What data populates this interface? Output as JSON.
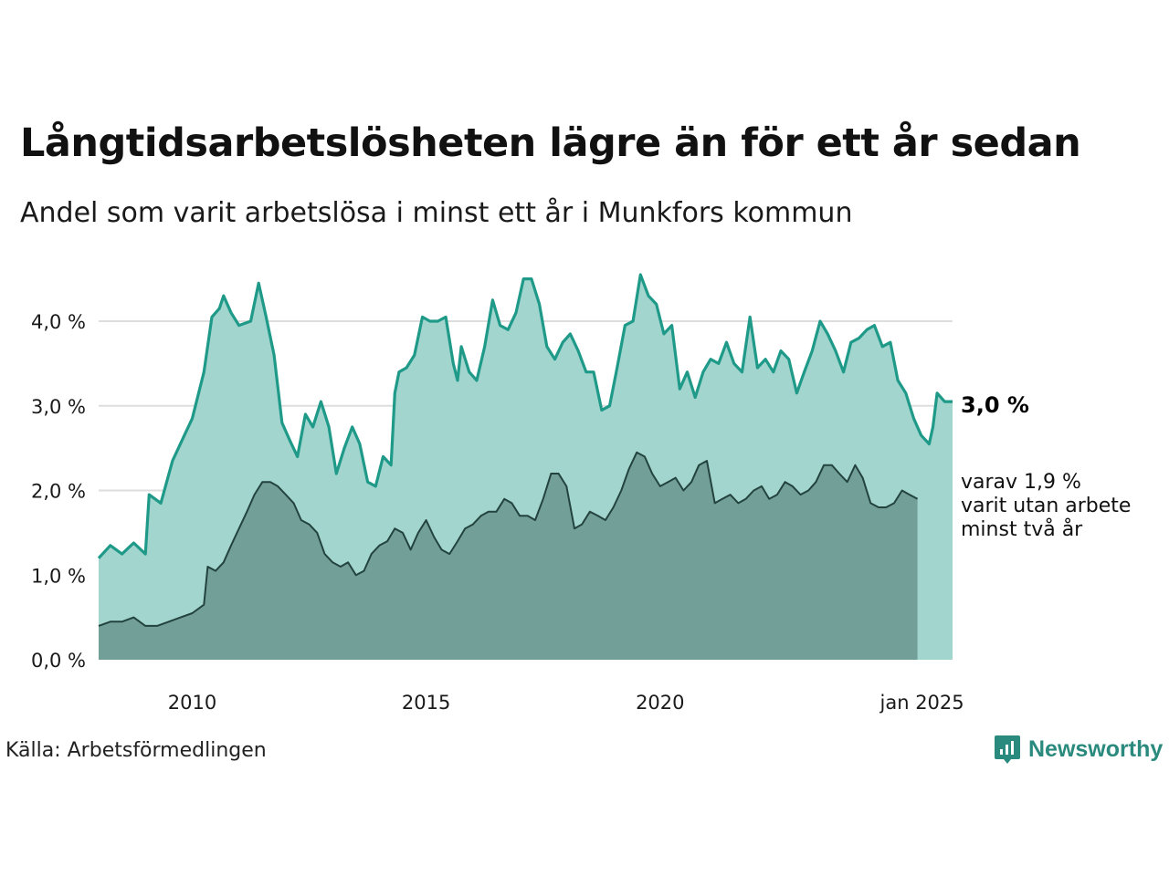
{
  "header": {
    "title": "Långtidsarbetslösheten lägre än för ett år sedan",
    "subtitle": "Andel som varit arbetslösa i minst ett år i Munkfors kommun"
  },
  "footer": {
    "source": "Källa: Arbetsförmedlingen",
    "brand": "Newsworthy"
  },
  "colors": {
    "primary_line": "#1f9a89",
    "primary_fill": "#a3d5cf",
    "secondary_line": "#23433e",
    "secondary_fill": "#729f98",
    "grid": "#dddddd",
    "brand": "#2b8a7e"
  },
  "chart_data": {
    "type": "area",
    "x_range": [
      "2008-01",
      "2025-01"
    ],
    "ylim": [
      0,
      4.6
    ],
    "yticks": [
      0,
      1,
      2,
      3,
      4
    ],
    "ytick_labels": [
      "0,0 %",
      "1,0 %",
      "2,0 %",
      "3,0 %",
      "4,0 %"
    ],
    "xticks": [
      2010,
      2015,
      2020,
      2025.0
    ],
    "xtick_labels": [
      "2010",
      "2015",
      "2020",
      "jan 2025"
    ],
    "grid": "horizontal",
    "end_labels": {
      "primary": "3,0 %",
      "secondary": [
        "varav 1,9 %",
        "varit utan arbete",
        "minst två år"
      ]
    },
    "series": [
      {
        "name": "",
        "values": [
          [
            2008.0,
            1.2
          ],
          [
            2008.25,
            1.35
          ],
          [
            2008.5,
            1.25
          ],
          [
            2008.75,
            1.38
          ],
          [
            2009.0,
            1.25
          ],
          [
            2009.08,
            1.95
          ],
          [
            2009.33,
            1.85
          ],
          [
            2009.58,
            2.35
          ],
          [
            2009.83,
            2.65
          ],
          [
            2010.0,
            2.85
          ],
          [
            2010.25,
            3.4
          ],
          [
            2010.42,
            4.05
          ],
          [
            2010.58,
            4.15
          ],
          [
            2010.67,
            4.3
          ],
          [
            2010.83,
            4.1
          ],
          [
            2011.0,
            3.95
          ],
          [
            2011.25,
            4.0
          ],
          [
            2011.42,
            4.45
          ],
          [
            2011.58,
            4.05
          ],
          [
            2011.75,
            3.6
          ],
          [
            2011.92,
            2.8
          ],
          [
            2012.08,
            2.6
          ],
          [
            2012.25,
            2.4
          ],
          [
            2012.42,
            2.9
          ],
          [
            2012.58,
            2.75
          ],
          [
            2012.75,
            3.05
          ],
          [
            2012.92,
            2.75
          ],
          [
            2013.08,
            2.2
          ],
          [
            2013.25,
            2.5
          ],
          [
            2013.42,
            2.75
          ],
          [
            2013.58,
            2.55
          ],
          [
            2013.75,
            2.1
          ],
          [
            2013.92,
            2.05
          ],
          [
            2014.08,
            2.4
          ],
          [
            2014.25,
            2.3
          ],
          [
            2014.33,
            3.15
          ],
          [
            2014.42,
            3.4
          ],
          [
            2014.58,
            3.45
          ],
          [
            2014.75,
            3.6
          ],
          [
            2014.92,
            4.05
          ],
          [
            2015.08,
            4.0
          ],
          [
            2015.25,
            4.0
          ],
          [
            2015.42,
            4.05
          ],
          [
            2015.58,
            3.5
          ],
          [
            2015.67,
            3.3
          ],
          [
            2015.75,
            3.7
          ],
          [
            2015.92,
            3.4
          ],
          [
            2016.08,
            3.3
          ],
          [
            2016.25,
            3.7
          ],
          [
            2016.42,
            4.25
          ],
          [
            2016.58,
            3.95
          ],
          [
            2016.75,
            3.9
          ],
          [
            2016.92,
            4.1
          ],
          [
            2017.08,
            4.5
          ],
          [
            2017.25,
            4.5
          ],
          [
            2017.42,
            4.2
          ],
          [
            2017.58,
            3.7
          ],
          [
            2017.75,
            3.55
          ],
          [
            2017.92,
            3.75
          ],
          [
            2018.08,
            3.85
          ],
          [
            2018.25,
            3.65
          ],
          [
            2018.42,
            3.4
          ],
          [
            2018.58,
            3.4
          ],
          [
            2018.75,
            2.95
          ],
          [
            2018.92,
            3.0
          ],
          [
            2019.08,
            3.45
          ],
          [
            2019.25,
            3.95
          ],
          [
            2019.42,
            4.0
          ],
          [
            2019.58,
            4.55
          ],
          [
            2019.75,
            4.3
          ],
          [
            2019.92,
            4.2
          ],
          [
            2020.08,
            3.85
          ],
          [
            2020.25,
            3.95
          ],
          [
            2020.42,
            3.2
          ],
          [
            2020.58,
            3.4
          ],
          [
            2020.75,
            3.1
          ],
          [
            2020.92,
            3.4
          ],
          [
            2021.08,
            3.55
          ],
          [
            2021.25,
            3.5
          ],
          [
            2021.42,
            3.75
          ],
          [
            2021.58,
            3.5
          ],
          [
            2021.75,
            3.4
          ],
          [
            2021.92,
            4.05
          ],
          [
            2022.08,
            3.45
          ],
          [
            2022.25,
            3.55
          ],
          [
            2022.42,
            3.4
          ],
          [
            2022.58,
            3.65
          ],
          [
            2022.75,
            3.55
          ],
          [
            2022.92,
            3.15
          ],
          [
            2023.08,
            3.4
          ],
          [
            2023.25,
            3.65
          ],
          [
            2023.42,
            4.0
          ],
          [
            2023.58,
            3.85
          ],
          [
            2023.75,
            3.65
          ],
          [
            2023.92,
            3.4
          ],
          [
            2024.08,
            3.75
          ],
          [
            2024.25,
            3.8
          ],
          [
            2024.42,
            3.9
          ],
          [
            2024.58,
            3.95
          ],
          [
            2024.75,
            3.7
          ],
          [
            2024.92,
            3.75
          ],
          [
            2025.08,
            3.3
          ],
          [
            2025.25,
            3.15
          ],
          [
            2025.42,
            2.85
          ],
          [
            2025.58,
            2.65
          ],
          [
            2025.75,
            2.55
          ],
          [
            2025.83,
            2.75
          ],
          [
            2025.92,
            3.15
          ],
          [
            2026.08,
            3.05
          ],
          [
            2026.25,
            3.05
          ]
        ]
      },
      {
        "name": "",
        "values": [
          [
            2008.0,
            0.4
          ],
          [
            2008.25,
            0.45
          ],
          [
            2008.5,
            0.45
          ],
          [
            2008.75,
            0.5
          ],
          [
            2009.0,
            0.4
          ],
          [
            2009.25,
            0.4
          ],
          [
            2009.5,
            0.45
          ],
          [
            2009.75,
            0.5
          ],
          [
            2010.0,
            0.55
          ],
          [
            2010.25,
            0.65
          ],
          [
            2010.33,
            1.1
          ],
          [
            2010.5,
            1.05
          ],
          [
            2010.67,
            1.15
          ],
          [
            2010.83,
            1.35
          ],
          [
            2011.0,
            1.55
          ],
          [
            2011.17,
            1.75
          ],
          [
            2011.33,
            1.95
          ],
          [
            2011.5,
            2.1
          ],
          [
            2011.67,
            2.1
          ],
          [
            2011.83,
            2.05
          ],
          [
            2012.0,
            1.95
          ],
          [
            2012.17,
            1.85
          ],
          [
            2012.33,
            1.65
          ],
          [
            2012.5,
            1.6
          ],
          [
            2012.67,
            1.5
          ],
          [
            2012.83,
            1.25
          ],
          [
            2013.0,
            1.15
          ],
          [
            2013.17,
            1.1
          ],
          [
            2013.33,
            1.15
          ],
          [
            2013.5,
            1.0
          ],
          [
            2013.67,
            1.05
          ],
          [
            2013.83,
            1.25
          ],
          [
            2014.0,
            1.35
          ],
          [
            2014.17,
            1.4
          ],
          [
            2014.33,
            1.55
          ],
          [
            2014.5,
            1.5
          ],
          [
            2014.67,
            1.3
          ],
          [
            2014.83,
            1.5
          ],
          [
            2015.0,
            1.65
          ],
          [
            2015.17,
            1.45
          ],
          [
            2015.33,
            1.3
          ],
          [
            2015.5,
            1.25
          ],
          [
            2015.67,
            1.4
          ],
          [
            2015.83,
            1.55
          ],
          [
            2016.0,
            1.6
          ],
          [
            2016.17,
            1.7
          ],
          [
            2016.33,
            1.75
          ],
          [
            2016.5,
            1.75
          ],
          [
            2016.67,
            1.9
          ],
          [
            2016.83,
            1.85
          ],
          [
            2017.0,
            1.7
          ],
          [
            2017.17,
            1.7
          ],
          [
            2017.33,
            1.65
          ],
          [
            2017.5,
            1.9
          ],
          [
            2017.67,
            2.2
          ],
          [
            2017.83,
            2.2
          ],
          [
            2018.0,
            2.05
          ],
          [
            2018.17,
            1.55
          ],
          [
            2018.33,
            1.6
          ],
          [
            2018.5,
            1.75
          ],
          [
            2018.67,
            1.7
          ],
          [
            2018.83,
            1.65
          ],
          [
            2019.0,
            1.8
          ],
          [
            2019.17,
            2.0
          ],
          [
            2019.33,
            2.25
          ],
          [
            2019.5,
            2.45
          ],
          [
            2019.67,
            2.4
          ],
          [
            2019.83,
            2.2
          ],
          [
            2020.0,
            2.05
          ],
          [
            2020.17,
            2.1
          ],
          [
            2020.33,
            2.15
          ],
          [
            2020.5,
            2.0
          ],
          [
            2020.67,
            2.1
          ],
          [
            2020.83,
            2.3
          ],
          [
            2021.0,
            2.35
          ],
          [
            2021.17,
            1.85
          ],
          [
            2021.33,
            1.9
          ],
          [
            2021.5,
            1.95
          ],
          [
            2021.67,
            1.85
          ],
          [
            2021.83,
            1.9
          ],
          [
            2022.0,
            2.0
          ],
          [
            2022.17,
            2.05
          ],
          [
            2022.33,
            1.9
          ],
          [
            2022.5,
            1.95
          ],
          [
            2022.67,
            2.1
          ],
          [
            2022.83,
            2.05
          ],
          [
            2023.0,
            1.95
          ],
          [
            2023.17,
            2.0
          ],
          [
            2023.33,
            2.1
          ],
          [
            2023.5,
            2.3
          ],
          [
            2023.67,
            2.3
          ],
          [
            2023.83,
            2.2
          ],
          [
            2024.0,
            2.1
          ],
          [
            2024.17,
            2.3
          ],
          [
            2024.33,
            2.15
          ],
          [
            2024.5,
            1.85
          ],
          [
            2024.67,
            1.8
          ],
          [
            2024.83,
            1.8
          ],
          [
            2025.0,
            1.85
          ],
          [
            2025.17,
            2.0
          ],
          [
            2025.33,
            1.95
          ],
          [
            2025.5,
            1.9
          ]
        ]
      }
    ]
  }
}
